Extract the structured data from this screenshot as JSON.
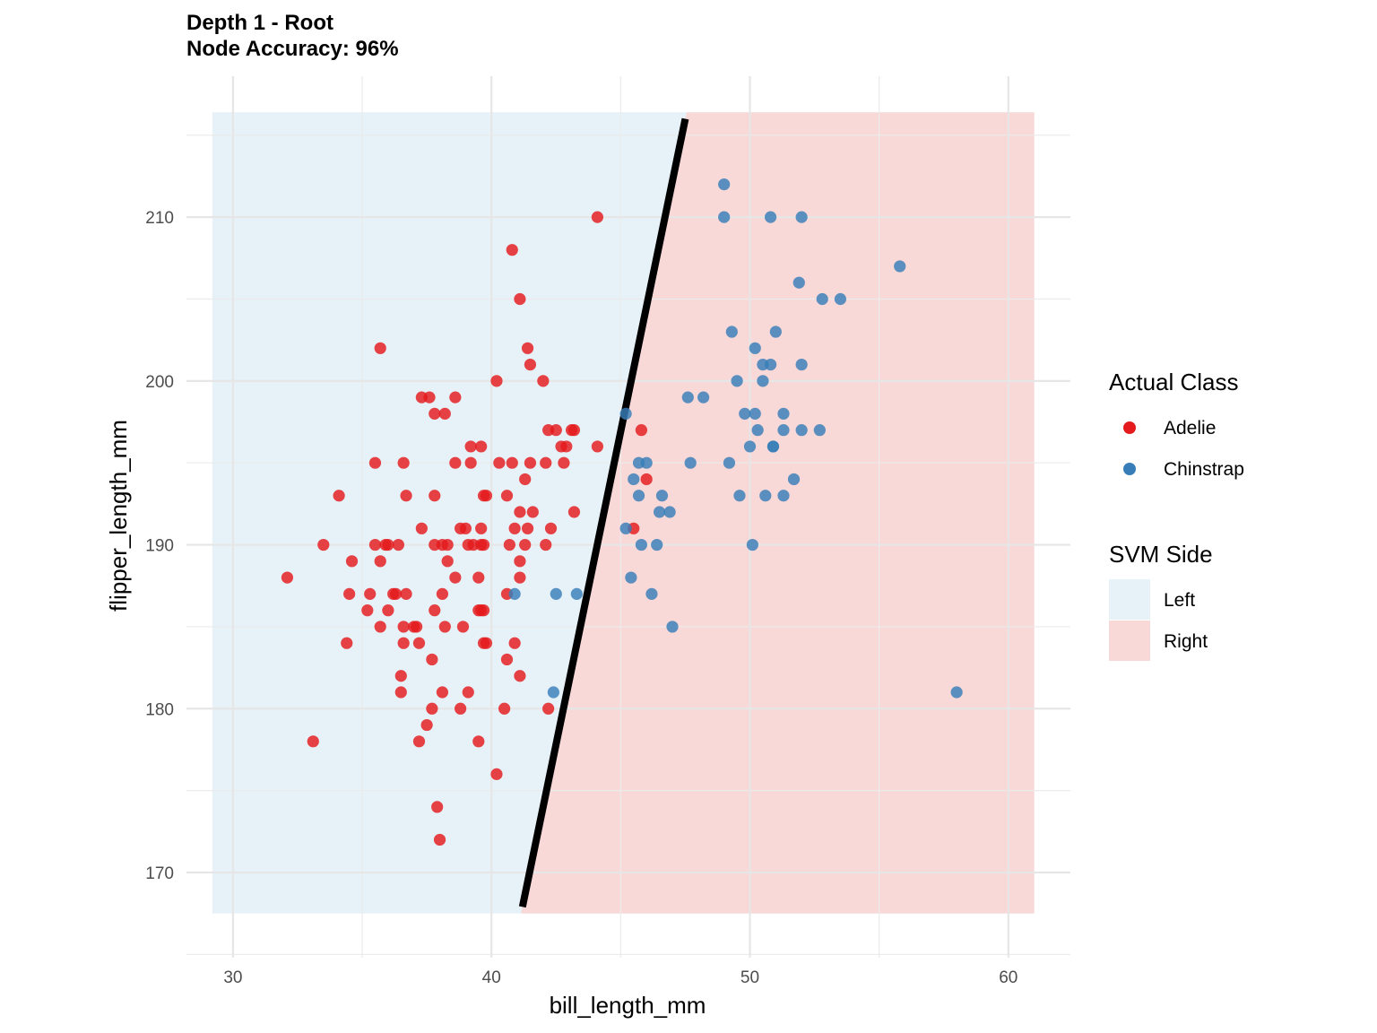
{
  "chart_data": {
    "type": "scatter",
    "title": "Depth 1 - Root",
    "subtitle": "Node Accuracy: 96%",
    "xlabel": "bill_length_mm",
    "ylabel": "flipper_length_mm",
    "xlim": [
      28.2,
      62.4
    ],
    "ylim": [
      164.8,
      218.6
    ],
    "x_ticks": [
      30,
      40,
      50,
      60
    ],
    "y_ticks": [
      170,
      180,
      190,
      200,
      210
    ],
    "grid": true,
    "colors": {
      "adelie": "#e41a1c",
      "chinstrap": "#377eb8",
      "left_region": "#e6f1f8",
      "right_region": "#f9d8d8",
      "boundary": "#000000"
    },
    "regions": {
      "x_range": [
        29.2,
        61.0
      ],
      "y_range": [
        167.5,
        216.4
      ]
    },
    "boundary": {
      "from": [
        41.2,
        167.9
      ],
      "to": [
        47.5,
        216.0
      ]
    },
    "legend": {
      "position": "right",
      "class_title": "Actual Class",
      "class_items": [
        {
          "label": "Adelie",
          "color": "#e41a1c"
        },
        {
          "label": "Chinstrap",
          "color": "#377eb8"
        }
      ],
      "side_title": "SVM Side",
      "side_items": [
        {
          "label": "Left",
          "color": "#e6f1f8"
        },
        {
          "label": "Right",
          "color": "#f9d8d8"
        }
      ]
    },
    "series": [
      {
        "name": "Adelie",
        "color": "#e41a1c",
        "points": [
          [
            44.1,
            210
          ],
          [
            40.8,
            208
          ],
          [
            41.1,
            205
          ],
          [
            35.7,
            202
          ],
          [
            41.4,
            202
          ],
          [
            41.5,
            201
          ],
          [
            42,
            200
          ],
          [
            40.2,
            200
          ],
          [
            37.3,
            199
          ],
          [
            37.6,
            199
          ],
          [
            38.6,
            199
          ],
          [
            37.8,
            198
          ],
          [
            38.2,
            198
          ],
          [
            45.8,
            197
          ],
          [
            42.2,
            197
          ],
          [
            42.5,
            197
          ],
          [
            43.1,
            197
          ],
          [
            43.2,
            197
          ],
          [
            39.2,
            196
          ],
          [
            39.6,
            196
          ],
          [
            42.7,
            196
          ],
          [
            42.9,
            196
          ],
          [
            44.1,
            196
          ],
          [
            35.5,
            195
          ],
          [
            36.6,
            195
          ],
          [
            38.6,
            195
          ],
          [
            39.2,
            195
          ],
          [
            40.3,
            195
          ],
          [
            40.8,
            195
          ],
          [
            41.5,
            195
          ],
          [
            42.1,
            195
          ],
          [
            42.8,
            195
          ],
          [
            46,
            194
          ],
          [
            41.3,
            194
          ],
          [
            34.1,
            193
          ],
          [
            36.7,
            193
          ],
          [
            37.8,
            193
          ],
          [
            39.7,
            193
          ],
          [
            39.8,
            193
          ],
          [
            40.6,
            193
          ],
          [
            41.1,
            192
          ],
          [
            41.6,
            192
          ],
          [
            43.2,
            192
          ],
          [
            45.5,
            191
          ],
          [
            37.3,
            191
          ],
          [
            38.8,
            191
          ],
          [
            39,
            191
          ],
          [
            39.6,
            191
          ],
          [
            40.9,
            191
          ],
          [
            41.4,
            191
          ],
          [
            42.3,
            191
          ],
          [
            33.5,
            190
          ],
          [
            35.5,
            190
          ],
          [
            35.9,
            190
          ],
          [
            36,
            190
          ],
          [
            36.4,
            190
          ],
          [
            37.8,
            190
          ],
          [
            38.1,
            190
          ],
          [
            38.3,
            190
          ],
          [
            39.1,
            190
          ],
          [
            39.3,
            190
          ],
          [
            39.6,
            190
          ],
          [
            39.7,
            190
          ],
          [
            40.7,
            190
          ],
          [
            41.3,
            190
          ],
          [
            42.1,
            190
          ],
          [
            34.6,
            189
          ],
          [
            35.7,
            189
          ],
          [
            38.3,
            189
          ],
          [
            41.1,
            189
          ],
          [
            32.1,
            188
          ],
          [
            38.6,
            188
          ],
          [
            39.5,
            188
          ],
          [
            41.1,
            188
          ],
          [
            34.5,
            187
          ],
          [
            35.3,
            187
          ],
          [
            36.2,
            187
          ],
          [
            36.3,
            187
          ],
          [
            36.7,
            187
          ],
          [
            38.1,
            187
          ],
          [
            40.6,
            187
          ],
          [
            35.2,
            186
          ],
          [
            36,
            186
          ],
          [
            37.8,
            186
          ],
          [
            39.5,
            186
          ],
          [
            39.6,
            186
          ],
          [
            39.7,
            186
          ],
          [
            36.6,
            185
          ],
          [
            35.7,
            185
          ],
          [
            37,
            185
          ],
          [
            37.1,
            185
          ],
          [
            38.2,
            185
          ],
          [
            38.9,
            185
          ],
          [
            34.4,
            184
          ],
          [
            36.6,
            184
          ],
          [
            37.2,
            184
          ],
          [
            39.7,
            184
          ],
          [
            39.8,
            184
          ],
          [
            40.9,
            184
          ],
          [
            37.7,
            183
          ],
          [
            40.6,
            183
          ],
          [
            36.5,
            182
          ],
          [
            41.1,
            182
          ],
          [
            36.5,
            181
          ],
          [
            38.1,
            181
          ],
          [
            39.1,
            181
          ],
          [
            37.7,
            180
          ],
          [
            38.8,
            180
          ],
          [
            40.5,
            180
          ],
          [
            42.2,
            180
          ],
          [
            37.5,
            179
          ],
          [
            33.1,
            178
          ],
          [
            37.2,
            178
          ],
          [
            39.5,
            178
          ],
          [
            40.2,
            176
          ],
          [
            37.9,
            174
          ],
          [
            38,
            172
          ]
        ]
      },
      {
        "name": "Chinstrap",
        "color": "#377eb8",
        "points": [
          [
            49,
            212
          ],
          [
            49,
            210
          ],
          [
            50.8,
            210
          ],
          [
            52,
            210
          ],
          [
            55.8,
            207
          ],
          [
            51.9,
            206
          ],
          [
            52.8,
            205
          ],
          [
            53.5,
            205
          ],
          [
            49.3,
            203
          ],
          [
            51,
            203
          ],
          [
            50.2,
            202
          ],
          [
            50.5,
            201
          ],
          [
            50.8,
            201
          ],
          [
            52,
            201
          ],
          [
            49.5,
            200
          ],
          [
            50.5,
            200
          ],
          [
            47.6,
            199
          ],
          [
            48.2,
            199
          ],
          [
            45.2,
            198
          ],
          [
            49.8,
            198
          ],
          [
            50.2,
            198
          ],
          [
            51.3,
            198
          ],
          [
            50.3,
            197
          ],
          [
            51.3,
            197
          ],
          [
            52,
            197
          ],
          [
            52.7,
            197
          ],
          [
            50,
            196
          ],
          [
            50.9,
            196
          ],
          [
            50.9,
            196
          ],
          [
            45.7,
            195
          ],
          [
            46,
            195
          ],
          [
            47.7,
            195
          ],
          [
            49.2,
            195
          ],
          [
            45.5,
            194
          ],
          [
            51.7,
            194
          ],
          [
            45.7,
            193
          ],
          [
            46.6,
            193
          ],
          [
            49.6,
            193
          ],
          [
            50.6,
            193
          ],
          [
            51.3,
            193
          ],
          [
            46.5,
            192
          ],
          [
            46.9,
            192
          ],
          [
            45.2,
            191
          ],
          [
            45.8,
            190
          ],
          [
            46.4,
            190
          ],
          [
            50.1,
            190
          ],
          [
            45.4,
            188
          ],
          [
            40.9,
            187
          ],
          [
            42.5,
            187
          ],
          [
            43.3,
            187
          ],
          [
            46.2,
            187
          ],
          [
            47,
            185
          ],
          [
            42.4,
            181
          ],
          [
            58,
            181
          ]
        ]
      }
    ]
  }
}
